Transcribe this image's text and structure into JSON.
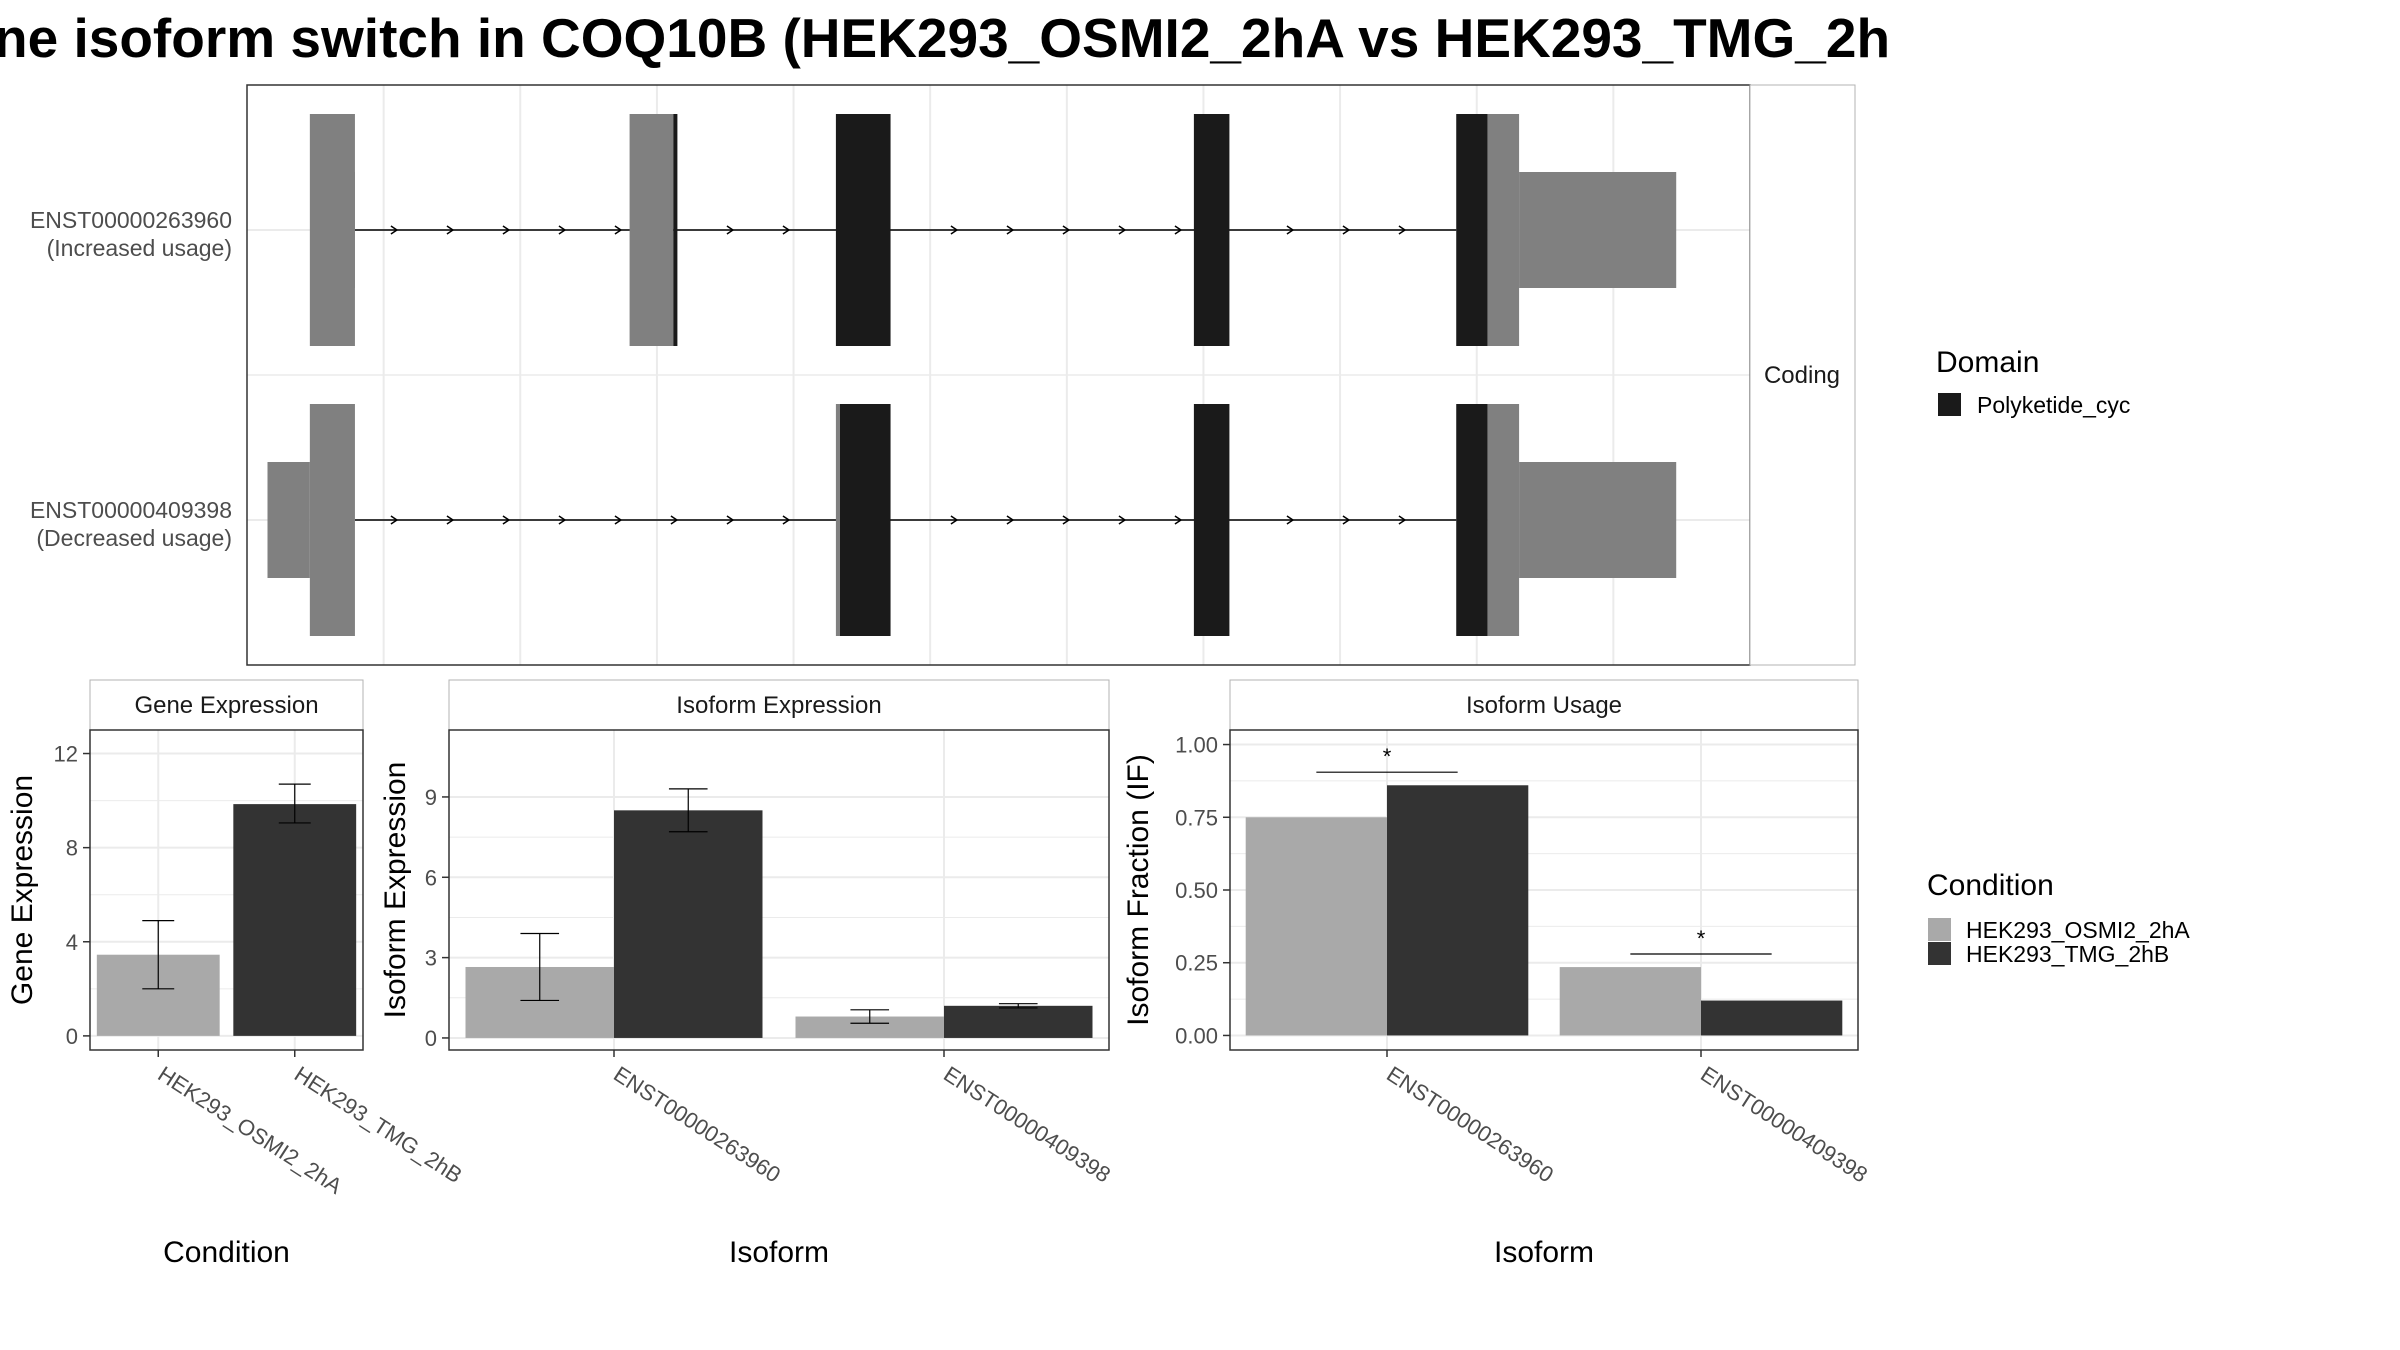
{
  "title": "ne isoform switch in COQ10B (HEK293_OSMI2_2hA vs HEK293_TMG_2h",
  "colors": {
    "domain": "#1a1a1a",
    "utr": "#808080",
    "condition_a": "#a9a9a9",
    "condition_b": "#333333",
    "grid": "#ebebeb",
    "panel_border": "#333333"
  },
  "structure": {
    "facet_label": "Coding",
    "transcripts": [
      {
        "id": "ENST00000263960",
        "label_line1": "ENST00000263960",
        "label_line2": "(Increased usage)",
        "exons": [
          {
            "start": 0.046,
            "end": 0.079,
            "kind": "utr_thick"
          },
          {
            "start": 0.065,
            "end": 0.079,
            "kind": "utr_thin_inner"
          },
          {
            "start": 0.28,
            "end": 0.312,
            "kind": "utr_thick"
          },
          {
            "start": 0.312,
            "end": 0.315,
            "kind": "domain"
          },
          {
            "start": 0.431,
            "end": 0.471,
            "kind": "domain"
          },
          {
            "start": 0.693,
            "end": 0.719,
            "kind": "domain"
          },
          {
            "start": 0.885,
            "end": 0.908,
            "kind": "domain"
          },
          {
            "start": 0.908,
            "end": 0.931,
            "kind": "utr_thick"
          },
          {
            "start": 0.931,
            "end": 1.046,
            "kind": "utr_thin"
          }
        ],
        "intron_start": 0.079,
        "intron_end": 0.885
      },
      {
        "id": "ENST00000409398",
        "label_line1": "ENST00000409398",
        "label_line2": "(Decreased usage)",
        "exons": [
          {
            "start": 0.046,
            "end": 0.079,
            "kind": "utr_thick"
          },
          {
            "start": 0.015,
            "end": 0.046,
            "kind": "utr_thin"
          },
          {
            "start": 0.431,
            "end": 0.434,
            "kind": "utr_thick"
          },
          {
            "start": 0.434,
            "end": 0.471,
            "kind": "domain"
          },
          {
            "start": 0.693,
            "end": 0.719,
            "kind": "domain"
          },
          {
            "start": 0.885,
            "end": 0.908,
            "kind": "domain"
          },
          {
            "start": 0.908,
            "end": 0.931,
            "kind": "utr_thick"
          },
          {
            "start": 0.931,
            "end": 1.046,
            "kind": "utr_thin"
          }
        ],
        "intron_start": 0.079,
        "intron_end": 0.885
      }
    ]
  },
  "legend_domain": {
    "title": "Domain",
    "items": [
      {
        "label": "Polyketide_cyc",
        "color": "#1a1a1a"
      }
    ]
  },
  "legend_condition": {
    "title": "Condition",
    "items": [
      {
        "label": "HEK293_OSMI2_2hA",
        "color": "#a9a9a9"
      },
      {
        "label": "HEK293_TMG_2hB",
        "color": "#333333"
      }
    ]
  },
  "chart_data": [
    {
      "type": "bar",
      "title": "Gene Expression",
      "xlabel": "Condition",
      "ylabel": "Gene Expression",
      "ylim": [
        -0.6,
        13.0
      ],
      "yticks": [
        0,
        4,
        8,
        12
      ],
      "ytick_labels": [
        "0",
        "4",
        "8",
        "12"
      ],
      "categories": [
        "HEK293_OSMI2_2hA",
        "HEK293_TMG_2hB"
      ],
      "bars": [
        {
          "category": "HEK293_OSMI2_2hA",
          "condition": "HEK293_OSMI2_2hA",
          "value": 3.45,
          "err_low": 2.0,
          "err_high": 4.9
        },
        {
          "category": "HEK293_TMG_2hB",
          "condition": "HEK293_TMG_2hB",
          "value": 9.85,
          "err_low": 9.05,
          "err_high": 10.7
        }
      ],
      "significance": []
    },
    {
      "type": "bar",
      "title": "Isoform Expression",
      "xlabel": "Isoform",
      "ylabel": "Isoform Expression",
      "ylim": [
        -0.45,
        11.5
      ],
      "yticks": [
        0,
        3,
        6,
        9
      ],
      "ytick_labels": [
        "0",
        "3",
        "6",
        "9"
      ],
      "categories": [
        "ENST00000263960",
        "ENST00000409398"
      ],
      "bars": [
        {
          "category": "ENST00000263960",
          "condition": "HEK293_OSMI2_2hA",
          "value": 2.65,
          "err_low": 1.4,
          "err_high": 3.9
        },
        {
          "category": "ENST00000263960",
          "condition": "HEK293_TMG_2hB",
          "value": 8.5,
          "err_low": 7.7,
          "err_high": 9.3
        },
        {
          "category": "ENST00000409398",
          "condition": "HEK293_OSMI2_2hA",
          "value": 0.8,
          "err_low": 0.55,
          "err_high": 1.05
        },
        {
          "category": "ENST00000409398",
          "condition": "HEK293_TMG_2hB",
          "value": 1.2,
          "err_low": 1.12,
          "err_high": 1.28
        }
      ],
      "significance": []
    },
    {
      "type": "bar",
      "title": "Isoform Usage",
      "xlabel": "Isoform",
      "ylabel": "Isoform Fraction (IF)",
      "ylim": [
        -0.05,
        1.05
      ],
      "yticks": [
        0,
        0.25,
        0.5,
        0.75,
        1.0
      ],
      "ytick_labels": [
        "0.00",
        "0.25",
        "0.50",
        "0.75",
        "1.00"
      ],
      "categories": [
        "ENST00000263960",
        "ENST00000409398"
      ],
      "bars": [
        {
          "category": "ENST00000263960",
          "condition": "HEK293_OSMI2_2hA",
          "value": 0.75
        },
        {
          "category": "ENST00000263960",
          "condition": "HEK293_TMG_2hB",
          "value": 0.86
        },
        {
          "category": "ENST00000409398",
          "condition": "HEK293_OSMI2_2hA",
          "value": 0.235
        },
        {
          "category": "ENST00000409398",
          "condition": "HEK293_TMG_2hB",
          "value": 0.12
        }
      ],
      "significance": [
        {
          "category": "ENST00000263960",
          "y": 0.905,
          "label": "*"
        },
        {
          "category": "ENST00000409398",
          "y": 0.28,
          "label": "*"
        }
      ]
    }
  ]
}
